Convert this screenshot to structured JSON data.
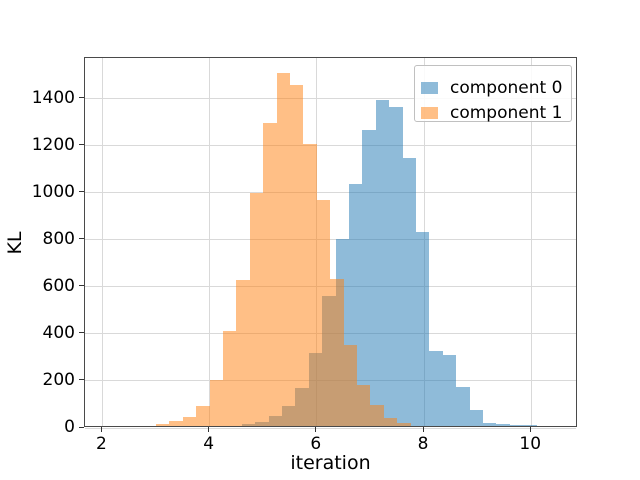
{
  "figure": {
    "background": "#ffffff",
    "grid_color": "#d9d9d9",
    "spine_color": "#4a4a4a",
    "tick_color": "#333333",
    "text_color": "#000000"
  },
  "legend": {
    "position": "upper right",
    "border_color": "#c0c0c0"
  },
  "chart_data": {
    "type": "histogram",
    "title": "",
    "xlabel": "iteration",
    "ylabel": "KL",
    "xlim": [
      1.675,
      10.872
    ],
    "ylim": [
      0,
      1573
    ],
    "x_ticks": [
      2,
      4,
      6,
      8,
      10
    ],
    "y_ticks": [
      0,
      200,
      400,
      600,
      800,
      1000,
      1200,
      1400
    ],
    "grid": true,
    "legend_position": "upper right",
    "series": [
      {
        "name": "component 0",
        "color": "#1f77b4",
        "alpha": 0.5,
        "bin_start": 4.6,
        "bin_width": 0.25,
        "counts": [
          8,
          18,
          42,
          85,
          160,
          310,
          554,
          794,
          1030,
          1260,
          1385,
          1355,
          1140,
          826,
          320,
          300,
          165,
          67,
          14,
          8,
          4,
          3
        ]
      },
      {
        "name": "component 1",
        "color": "#ff7f0e",
        "alpha": 0.5,
        "bin_start": 3.0,
        "bin_width": 0.25,
        "counts": [
          8,
          22,
          40,
          85,
          195,
          405,
          620,
          990,
          1290,
          1500,
          1450,
          1200,
          959,
          625,
          345,
          175,
          90,
          35,
          12
        ]
      }
    ]
  }
}
